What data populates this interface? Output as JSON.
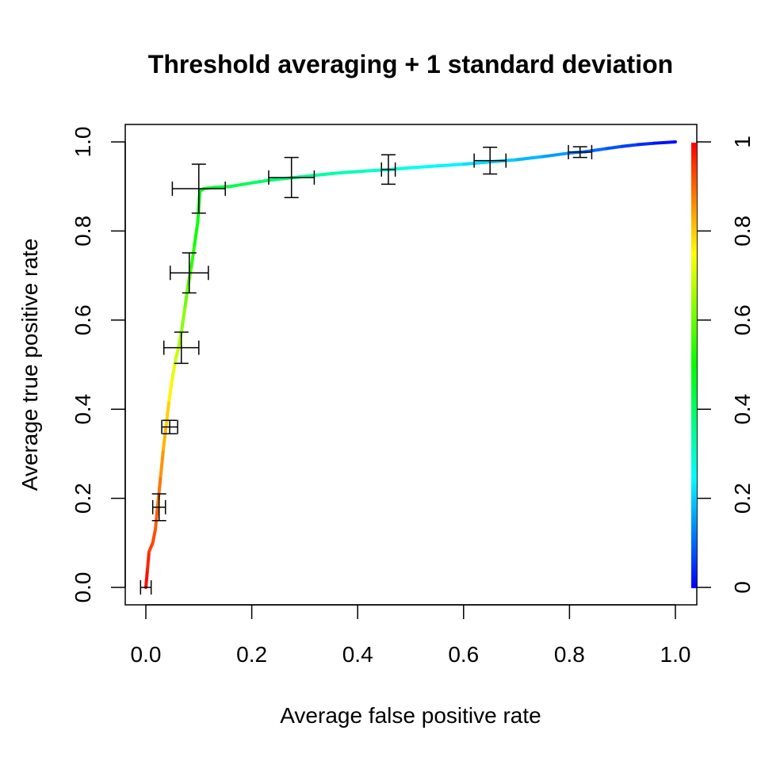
{
  "chart_data": {
    "type": "line",
    "title": "Threshold averaging + 1 standard deviation",
    "xlabel": "Average false positive rate",
    "ylabel": "Average true positive rate",
    "xlim": [
      0,
      1
    ],
    "ylim": [
      0,
      1
    ],
    "x_ticks": [
      "0.0",
      "0.2",
      "0.4",
      "0.6",
      "0.8",
      "1.0"
    ],
    "y_ticks": [
      "0.0",
      "0.2",
      "0.4",
      "0.6",
      "0.8",
      "1.0"
    ],
    "colorbar": {
      "ticks": [
        "0",
        "0.2",
        "0.4",
        "0.6",
        "0.8",
        "1"
      ],
      "range": [
        0,
        1
      ],
      "colors": [
        "#0000ff",
        "#00ffff",
        "#00ff00",
        "#ffff00",
        "#ff0000"
      ]
    },
    "grid": false,
    "series": [
      {
        "x": [
          0.0,
          0.003,
          0.006,
          0.013,
          0.018,
          0.022,
          0.028,
          0.033,
          0.038,
          0.044,
          0.05,
          0.056,
          0.062,
          0.068,
          0.074,
          0.08,
          0.086,
          0.092,
          0.098,
          0.102,
          0.11,
          0.13,
          0.16,
          0.2,
          0.24,
          0.28,
          0.32,
          0.36,
          0.42,
          0.46,
          0.5,
          0.55,
          0.6,
          0.65,
          0.7,
          0.75,
          0.8,
          0.83,
          0.87,
          0.9,
          0.93,
          0.96,
          1.0
        ],
        "y": [
          0.0,
          0.04,
          0.08,
          0.1,
          0.13,
          0.18,
          0.25,
          0.31,
          0.36,
          0.42,
          0.47,
          0.51,
          0.54,
          0.58,
          0.63,
          0.68,
          0.72,
          0.77,
          0.82,
          0.89,
          0.895,
          0.898,
          0.9,
          0.908,
          0.915,
          0.92,
          0.925,
          0.93,
          0.935,
          0.938,
          0.942,
          0.946,
          0.95,
          0.955,
          0.96,
          0.967,
          0.975,
          0.978,
          0.985,
          0.99,
          0.994,
          0.997,
          1.0
        ],
        "cutoff": [
          1.0,
          0.98,
          0.95,
          0.93,
          0.92,
          0.9,
          0.87,
          0.84,
          0.81,
          0.78,
          0.74,
          0.71,
          0.68,
          0.65,
          0.62,
          0.59,
          0.56,
          0.53,
          0.5,
          0.48,
          0.47,
          0.45,
          0.43,
          0.41,
          0.39,
          0.37,
          0.35,
          0.33,
          0.31,
          0.29,
          0.27,
          0.25,
          0.23,
          0.21,
          0.19,
          0.17,
          0.14,
          0.12,
          0.09,
          0.07,
          0.05,
          0.03,
          0.0
        ]
      }
    ],
    "error_bars": [
      {
        "x": 0.0,
        "y": 0.0,
        "xerr": 0.01,
        "yerr": 0.0
      },
      {
        "x": 0.025,
        "y": 0.18,
        "xerr": 0.012,
        "yerr": 0.03
      },
      {
        "x": 0.045,
        "y": 0.36,
        "xerr": 0.015,
        "yerr": 0.015
      },
      {
        "x": 0.067,
        "y": 0.538,
        "xerr": 0.033,
        "yerr": 0.035
      },
      {
        "x": 0.082,
        "y": 0.706,
        "xerr": 0.036,
        "yerr": 0.045
      },
      {
        "x": 0.1,
        "y": 0.895,
        "xerr": 0.05,
        "yerr": 0.055
      },
      {
        "x": 0.275,
        "y": 0.92,
        "xerr": 0.043,
        "yerr": 0.045
      },
      {
        "x": 0.458,
        "y": 0.938,
        "xerr": 0.013,
        "yerr": 0.033
      },
      {
        "x": 0.65,
        "y": 0.958,
        "xerr": 0.03,
        "yerr": 0.03
      },
      {
        "x": 0.82,
        "y": 0.977,
        "xerr": 0.022,
        "yerr": 0.012
      }
    ]
  }
}
